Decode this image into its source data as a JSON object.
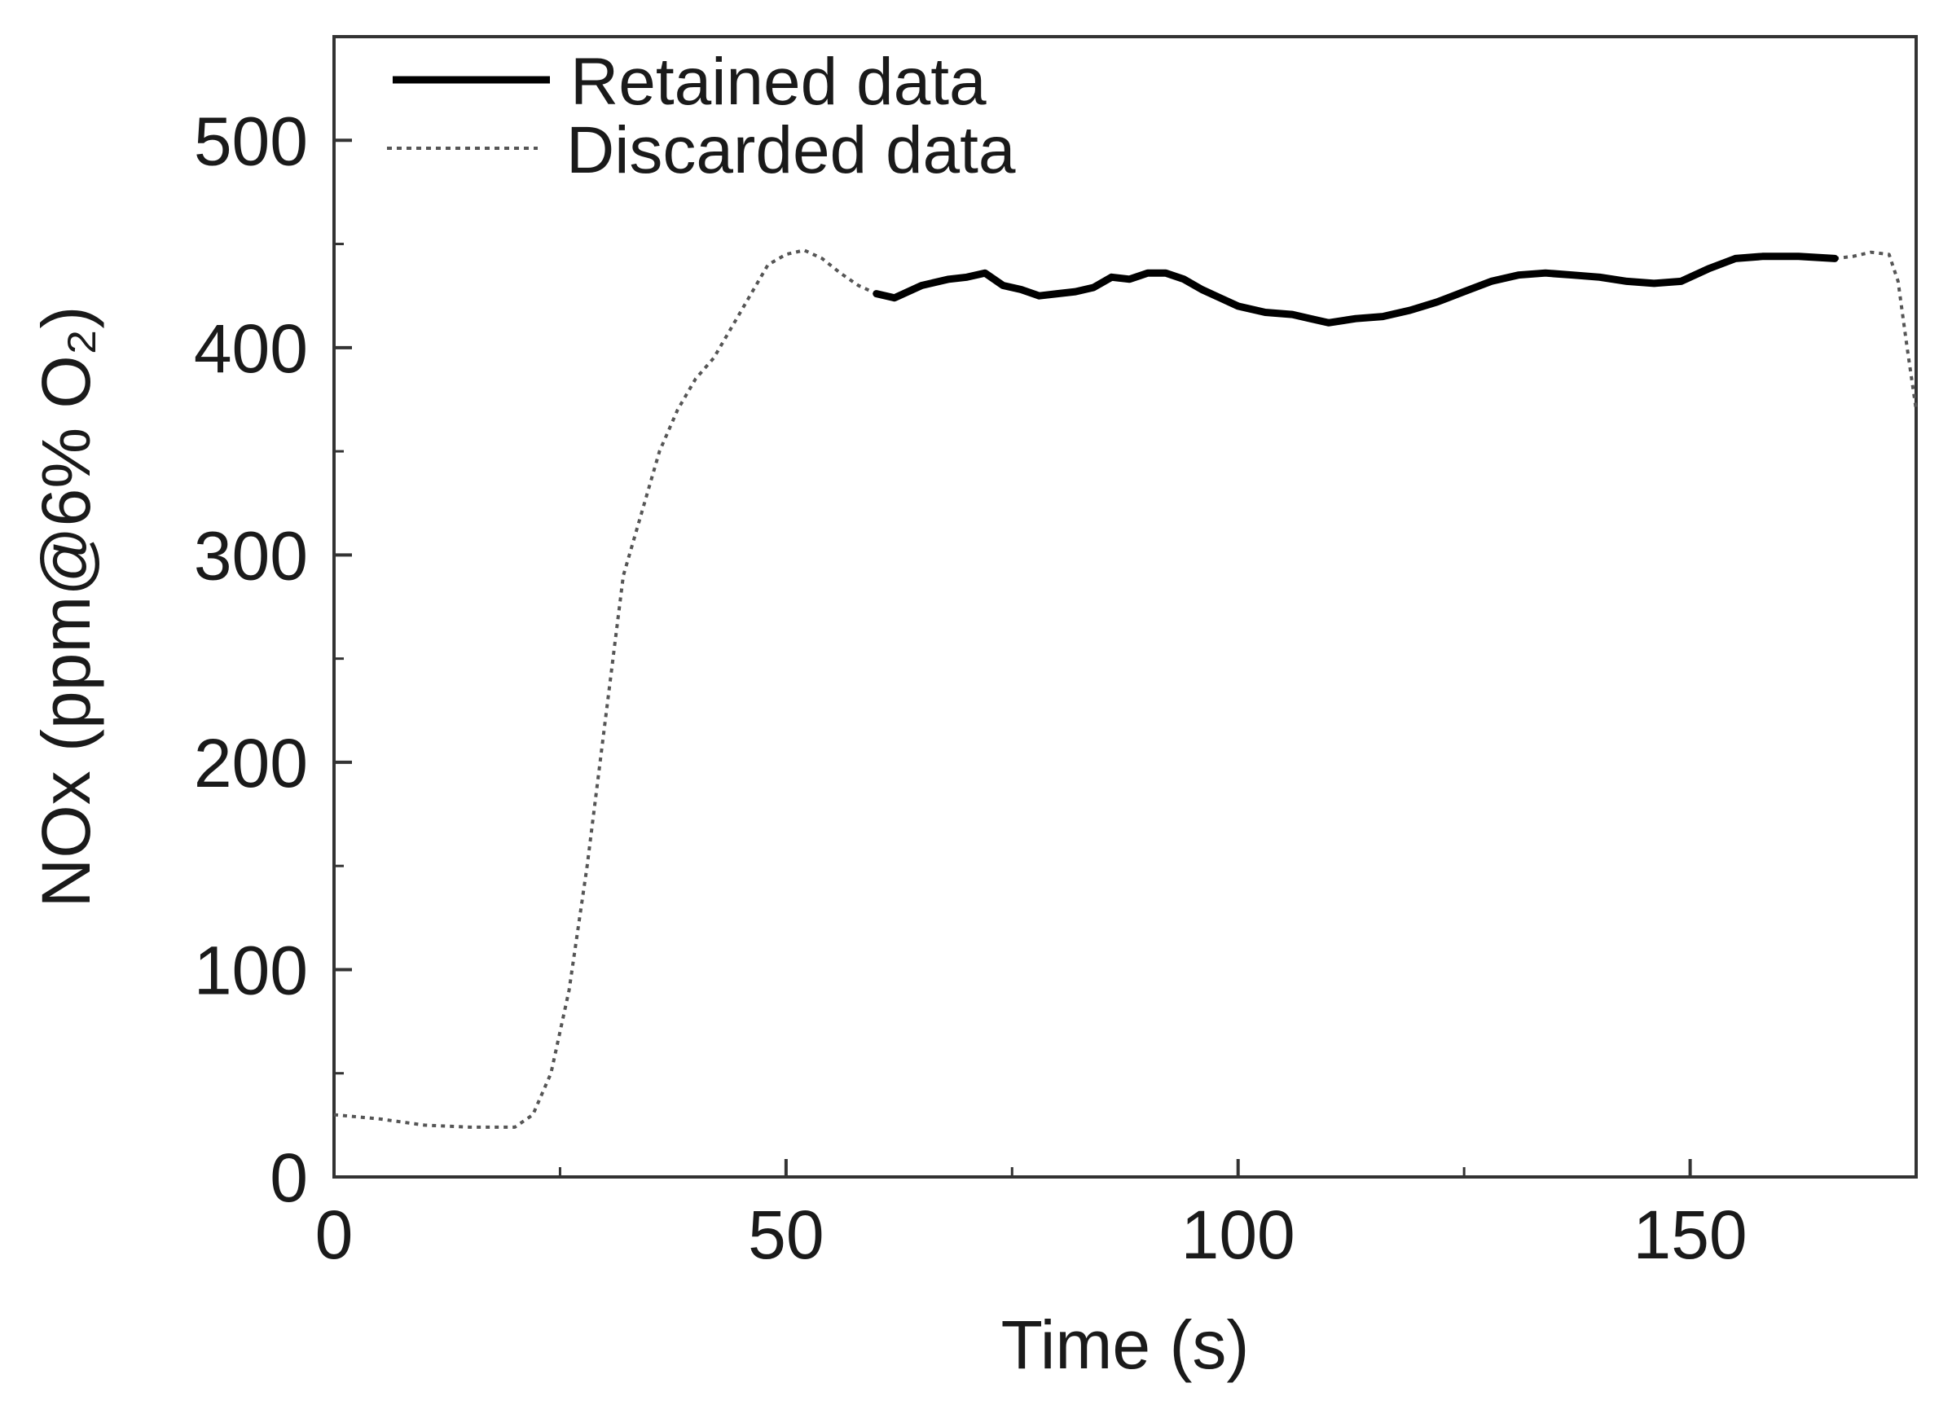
{
  "chart_data": {
    "type": "line",
    "title": "",
    "xlabel": "Time (s)",
    "ylabel": "NOx (ppm@6% O₂)",
    "xlim": [
      0,
      175
    ],
    "ylim": [
      0,
      550
    ],
    "xticks": [
      0,
      50,
      100,
      150
    ],
    "yticks": [
      0,
      100,
      200,
      300,
      400,
      500
    ],
    "xtick_labels": [
      "0",
      "50",
      "100",
      "150"
    ],
    "ytick_labels": [
      "0",
      "100",
      "200",
      "300",
      "400",
      "500"
    ],
    "grid": false,
    "legend_position": "top-left",
    "legend": [
      "Retained data",
      "Discarded data"
    ],
    "series": [
      {
        "name": "Retained data",
        "style": "solid",
        "color": "#000000",
        "x": [
          60,
          62,
          65,
          68,
          70,
          72,
          74,
          76,
          78,
          80,
          82,
          84,
          86,
          88,
          90,
          92,
          94,
          96,
          98,
          100,
          103,
          106,
          108,
          110,
          113,
          116,
          119,
          122,
          125,
          128,
          131,
          134,
          137,
          140,
          143,
          146,
          149,
          152,
          155,
          158,
          162,
          166
        ],
        "y": [
          426,
          424,
          430,
          433,
          434,
          436,
          430,
          428,
          425,
          426,
          427,
          429,
          434,
          433,
          436,
          436,
          433,
          428,
          424,
          420,
          417,
          416,
          414,
          412,
          414,
          415,
          418,
          422,
          427,
          432,
          435,
          436,
          435,
          434,
          432,
          431,
          432,
          438,
          443,
          444,
          444,
          443
        ]
      },
      {
        "name": "Discarded data",
        "style": "dotted",
        "color": "#555555",
        "x": [
          0,
          5,
          10,
          15,
          20,
          22,
          24,
          26,
          28,
          30,
          32,
          34,
          36,
          38,
          40,
          42,
          44,
          46,
          48,
          50,
          52,
          54,
          56,
          58,
          60
        ],
        "y": [
          30,
          28,
          25,
          24,
          24,
          30,
          50,
          90,
          150,
          220,
          290,
          320,
          350,
          370,
          385,
          395,
          410,
          425,
          440,
          445,
          447,
          443,
          436,
          430,
          426
        ],
        "x2": [
          166,
          168,
          170,
          172,
          173,
          174,
          175
        ],
        "y2": [
          443,
          444,
          446,
          445,
          432,
          400,
          370
        ]
      }
    ]
  }
}
